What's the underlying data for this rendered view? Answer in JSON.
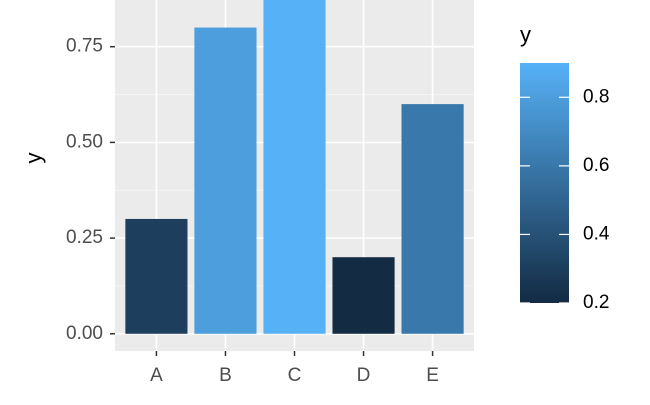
{
  "chart_data": {
    "type": "bar",
    "y_label": "y",
    "categories": [
      "A",
      "B",
      "C",
      "D",
      "E"
    ],
    "values": [
      0.3,
      0.8,
      0.9,
      0.2,
      0.6
    ],
    "ylim": [
      -0.045,
      0.872
    ],
    "yticks": [
      {
        "value": 0,
        "label": "0.00"
      },
      {
        "value": 0.25,
        "label": "0.25"
      },
      {
        "value": 0.5,
        "label": "0.50"
      },
      {
        "value": 0.75,
        "label": "0.75"
      }
    ],
    "grid": true,
    "legend": {
      "title": "y",
      "position": "right",
      "low_color": "#132B43",
      "high_color": "#56B1F7",
      "lim": [
        0.2,
        0.9
      ],
      "ticks": [
        0.2,
        0.4,
        0.6,
        0.8
      ]
    }
  }
}
